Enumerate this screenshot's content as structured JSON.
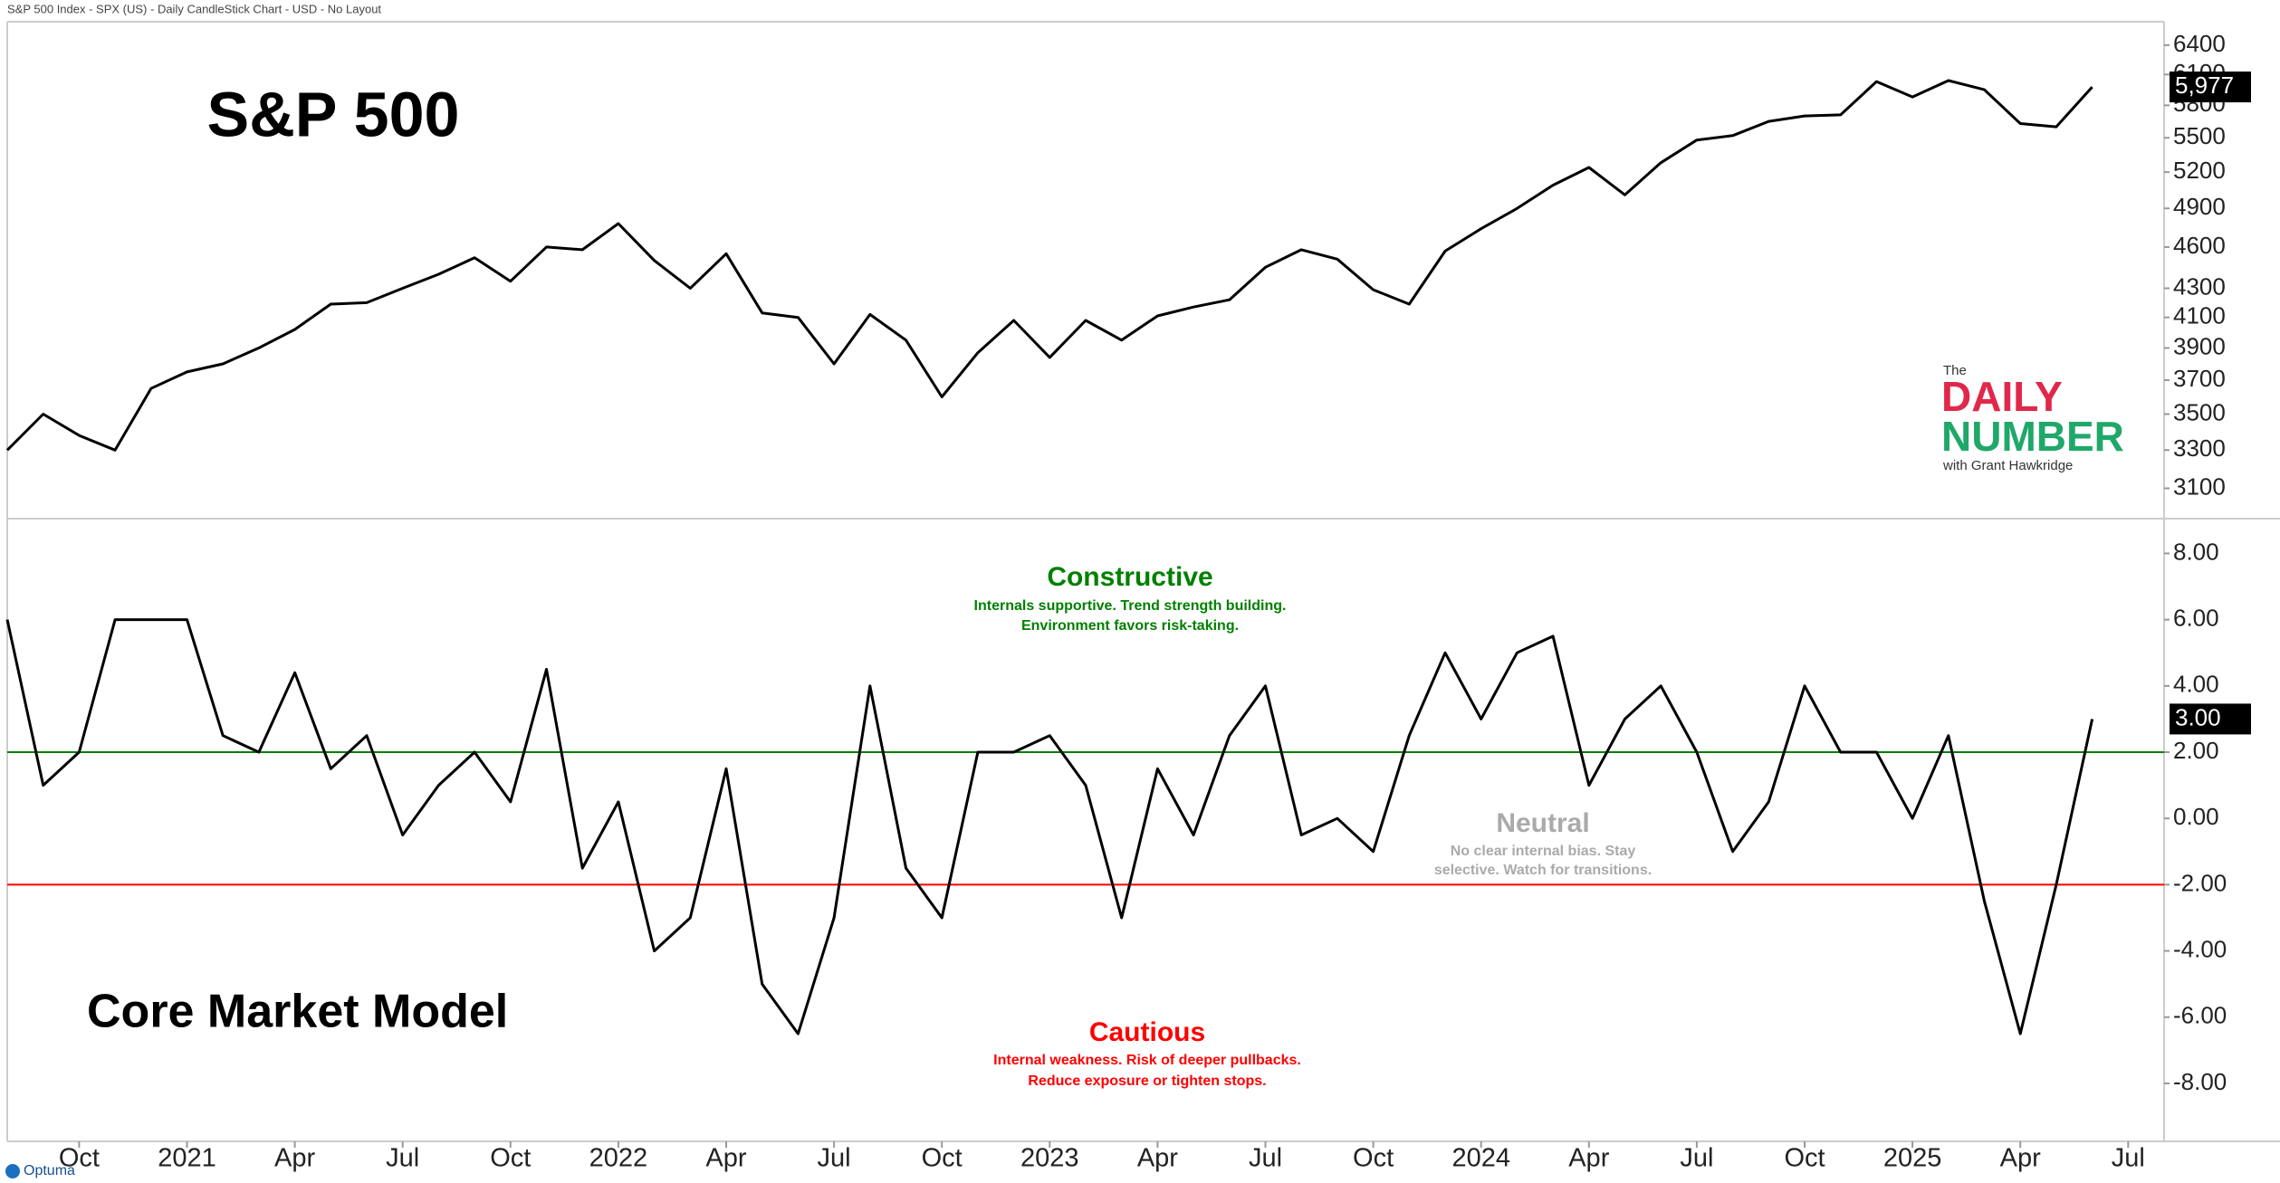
{
  "header": "S&P 500 Index - SPX (US) - Daily CandleStick Chart - USD - No Layout",
  "logo": {
    "pre": "The",
    "line1": "DAILY",
    "line2": "NUMBER",
    "byline": "with Grant Hawkridge"
  },
  "footer": "Optuma",
  "chart_data": [
    {
      "type": "line",
      "title": "S&P 500",
      "log_scale": true,
      "color": "#000000",
      "x": [
        "2020-08",
        "2020-09",
        "2020-10",
        "2020-11",
        "2020-12",
        "2021-01",
        "2021-02",
        "2021-03",
        "2021-04",
        "2021-05",
        "2021-06",
        "2021-07",
        "2021-08",
        "2021-09",
        "2021-10",
        "2021-11",
        "2021-12",
        "2022-01",
        "2022-02",
        "2022-03",
        "2022-04",
        "2022-05",
        "2022-06",
        "2022-07",
        "2022-08",
        "2022-09",
        "2022-10",
        "2022-11",
        "2022-12",
        "2023-01",
        "2023-02",
        "2023-03",
        "2023-04",
        "2023-05",
        "2023-06",
        "2023-07",
        "2023-08",
        "2023-09",
        "2023-10",
        "2023-11",
        "2023-12",
        "2024-01",
        "2024-02",
        "2024-03",
        "2024-04",
        "2024-05",
        "2024-06",
        "2024-07",
        "2024-08",
        "2024-09",
        "2024-10",
        "2024-11",
        "2024-12",
        "2025-01",
        "2025-02",
        "2025-03",
        "2025-04",
        "2025-05",
        "2025-06"
      ],
      "values": [
        3300,
        3500,
        3380,
        3300,
        3650,
        3750,
        3800,
        3900,
        4020,
        4190,
        4200,
        4300,
        4400,
        4520,
        4350,
        4600,
        4580,
        4780,
        4500,
        4300,
        4550,
        4130,
        4100,
        3800,
        4120,
        3950,
        3600,
        3870,
        4080,
        3840,
        4080,
        3950,
        4110,
        4170,
        4220,
        4450,
        4580,
        4510,
        4290,
        4190,
        4570,
        4740,
        4900,
        5090,
        5240,
        5010,
        5280,
        5480,
        5520,
        5650,
        5700,
        5710,
        6030,
        5880,
        6040,
        5950,
        5630,
        5600,
        5977
      ],
      "last_value": {
        "value": 5977,
        "label": "5,977"
      },
      "xlim": [
        "2020-08",
        "2025-08"
      ],
      "ylim": [
        2950,
        6650
      ],
      "yticks": [
        3100,
        3300,
        3500,
        3700,
        3900,
        4100,
        4300,
        4600,
        4900,
        5200,
        5500,
        5800,
        6100,
        6400
      ]
    },
    {
      "type": "line",
      "title": "Core Market Model",
      "color": "#000000",
      "x": [
        "2020-08",
        "2020-09",
        "2020-10",
        "2020-11",
        "2020-12",
        "2021-01",
        "2021-02",
        "2021-03",
        "2021-04",
        "2021-05",
        "2021-06",
        "2021-07",
        "2021-08",
        "2021-09",
        "2021-10",
        "2021-11",
        "2021-12",
        "2022-01",
        "2022-02",
        "2022-03",
        "2022-04",
        "2022-05",
        "2022-06",
        "2022-07",
        "2022-08",
        "2022-09",
        "2022-10",
        "2022-11",
        "2022-12",
        "2023-01",
        "2023-02",
        "2023-03",
        "2023-04",
        "2023-05",
        "2023-06",
        "2023-07",
        "2023-08",
        "2023-09",
        "2023-10",
        "2023-11",
        "2023-12",
        "2024-01",
        "2024-02",
        "2024-03",
        "2024-04",
        "2024-05",
        "2024-06",
        "2024-07",
        "2024-08",
        "2024-09",
        "2024-10",
        "2024-11",
        "2024-12",
        "2025-01",
        "2025-02",
        "2025-03",
        "2025-04",
        "2025-05",
        "2025-06"
      ],
      "values": [
        6.0,
        1.0,
        2.0,
        6.0,
        6.0,
        6.0,
        2.5,
        2.0,
        4.4,
        1.5,
        2.5,
        -0.5,
        1.0,
        2.0,
        0.5,
        4.5,
        -1.5,
        0.5,
        -4.0,
        -3.0,
        1.5,
        -5.0,
        -6.5,
        -3.0,
        4.0,
        -1.5,
        -3.0,
        2.0,
        2.0,
        2.5,
        1.0,
        -3.0,
        1.5,
        -0.5,
        2.5,
        4.0,
        -0.5,
        0.0,
        -1.0,
        2.5,
        5.0,
        3.0,
        5.0,
        5.5,
        1.0,
        3.0,
        4.0,
        2.0,
        -1.0,
        0.5,
        4.0,
        2.0,
        2.0,
        0.0,
        2.5,
        -2.5,
        -6.5,
        -2.0,
        3.0
      ],
      "last_value": {
        "value": 3,
        "label": "3.00"
      },
      "xlim": [
        "2020-08",
        "2025-08"
      ],
      "ylim": [
        -9.75,
        9.05
      ],
      "yticks": [
        {
          "value": 8,
          "label": "8.00"
        },
        {
          "value": 6,
          "label": "6.00"
        },
        {
          "value": 4,
          "label": "4.00"
        },
        {
          "value": 2,
          "label": "2.00"
        },
        {
          "value": 0,
          "label": "0.00"
        },
        {
          "value": -2,
          "label": "-2.00"
        },
        {
          "value": -4,
          "label": "-4.00"
        },
        {
          "value": -6,
          "label": "-6.00"
        },
        {
          "value": -8,
          "label": "-8.00"
        }
      ],
      "reference_lines": [
        {
          "value": 2,
          "color": "#008000"
        },
        {
          "value": -2,
          "color": "#ff0000"
        }
      ],
      "annotations": [
        {
          "title": "Constructive",
          "lines": [
            "Internals supportive. Trend strength building.",
            "Environment favors risk-taking."
          ],
          "color": "#008000"
        },
        {
          "title": "Neutral",
          "lines": [
            "No clear internal bias. Stay",
            "selective. Watch for transitions."
          ],
          "color": "#aaaaaa"
        },
        {
          "title": "Cautious",
          "lines": [
            "Internal weakness. Risk of deeper pullbacks.",
            "Reduce exposure or tighten stops."
          ],
          "color": "#ff0000"
        }
      ],
      "xticks": [
        {
          "value": "2020-10",
          "label": "Oct"
        },
        {
          "value": "2021-01",
          "label": "2021"
        },
        {
          "value": "2021-04",
          "label": "Apr"
        },
        {
          "value": "2021-07",
          "label": "Jul"
        },
        {
          "value": "2021-10",
          "label": "Oct"
        },
        {
          "value": "2022-01",
          "label": "2022"
        },
        {
          "value": "2022-04",
          "label": "Apr"
        },
        {
          "value": "2022-07",
          "label": "Jul"
        },
        {
          "value": "2022-10",
          "label": "Oct"
        },
        {
          "value": "2023-01",
          "label": "2023"
        },
        {
          "value": "2023-04",
          "label": "Apr"
        },
        {
          "value": "2023-07",
          "label": "Jul"
        },
        {
          "value": "2023-10",
          "label": "Oct"
        },
        {
          "value": "2024-01",
          "label": "2024"
        },
        {
          "value": "2024-04",
          "label": "Apr"
        },
        {
          "value": "2024-07",
          "label": "Jul"
        },
        {
          "value": "2024-10",
          "label": "Oct"
        },
        {
          "value": "2025-01",
          "label": "2025"
        },
        {
          "value": "2025-04",
          "label": "Apr"
        },
        {
          "value": "2025-07",
          "label": "Jul"
        }
      ]
    }
  ]
}
